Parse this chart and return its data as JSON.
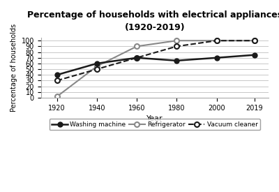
{
  "title_line1": "Percentage of households with electrical appliances",
  "title_line2": "(1920-2019)",
  "xlabel": "Year",
  "ylabel": "Percentage of households",
  "years": [
    1920,
    1940,
    1960,
    1980,
    2000,
    2019
  ],
  "washing_machine": [
    40,
    60,
    70,
    65,
    70,
    75
  ],
  "refrigerator": [
    2,
    55,
    90,
    100,
    100,
    100
  ],
  "vacuum_cleaner": [
    30,
    50,
    70,
    90,
    100,
    100
  ],
  "ylim": [
    0,
    105
  ],
  "yticks": [
    0,
    10,
    20,
    30,
    40,
    50,
    60,
    70,
    80,
    90,
    100
  ],
  "bg_color": "#ffffff",
  "line_color_washing": "#1a1a1a",
  "line_color_refrigerator": "#888888",
  "line_color_vacuum": "#1a1a1a",
  "legend_labels": [
    "Washing machine",
    "Refrigerator",
    "Vacuum cleaner"
  ],
  "title_fontsize": 9,
  "tick_fontsize": 7,
  "label_fontsize": 8
}
